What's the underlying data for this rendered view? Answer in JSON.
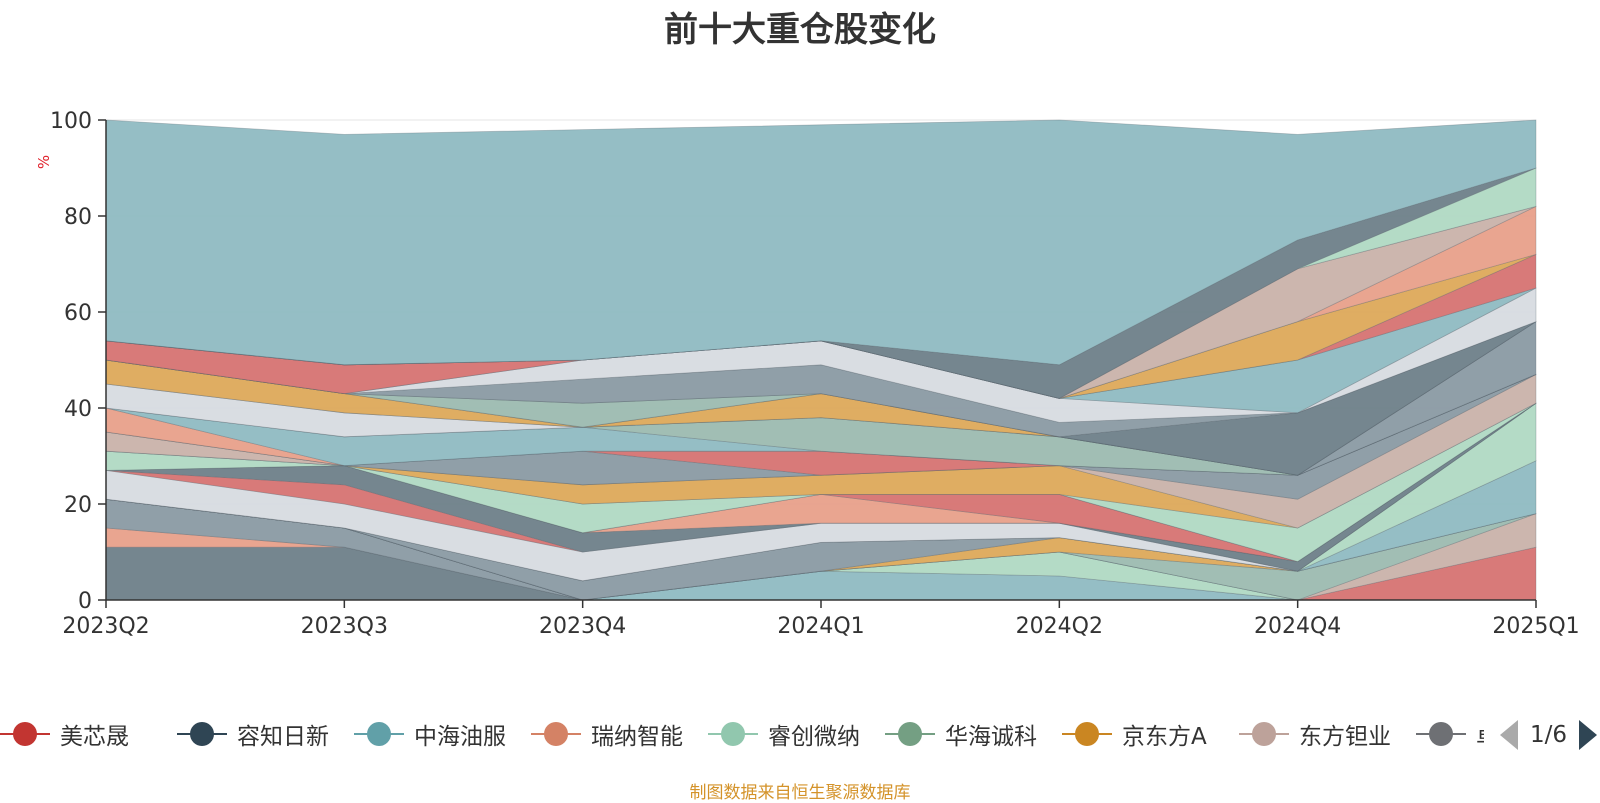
{
  "chart_data": {
    "type": "area",
    "stacked": true,
    "title": "前十大重仓股变化",
    "xlabel": "",
    "ylabel": "%",
    "ylim": [
      0,
      100
    ],
    "yticks": [
      "0",
      "20",
      "40",
      "60",
      "80",
      "100"
    ],
    "grid": true,
    "categories": [
      "2023Q2",
      "2023Q3",
      "2023Q4",
      "2024Q1",
      "2024Q2",
      "2024Q4",
      "2025Q1"
    ],
    "series": [
      {
        "name": "",
        "color": "#6e7f89",
        "values": [
          11,
          11,
          0,
          0,
          0,
          0,
          0
        ]
      },
      {
        "name": "",
        "color": "#e8a08a",
        "values": [
          4,
          0,
          0,
          0,
          0,
          0,
          0
        ]
      },
      {
        "name": "",
        "color": "#8a9aa3",
        "values": [
          6,
          4,
          0,
          0,
          0,
          0,
          0
        ]
      },
      {
        "name": "",
        "color": "#8fbac2",
        "values": [
          0,
          0,
          0,
          6,
          5,
          0,
          0
        ]
      },
      {
        "name": "",
        "color": "#b0d9c3",
        "values": [
          0,
          0,
          0,
          0,
          5,
          0,
          0
        ]
      },
      {
        "name": "",
        "color": "#d67372",
        "values": [
          0,
          0,
          0,
          0,
          0,
          0,
          11
        ]
      },
      {
        "name": "",
        "color": "#c9b2aa",
        "values": [
          0,
          0,
          0,
          0,
          0,
          0,
          7
        ]
      },
      {
        "name": "",
        "color": "#9cbbb0",
        "values": [
          0,
          0,
          0,
          0,
          0,
          6,
          0
        ]
      },
      {
        "name": "",
        "color": "#dda95a",
        "values": [
          0,
          0,
          0,
          0,
          3,
          0,
          0
        ]
      },
      {
        "name": "",
        "color": "#8a9aa3",
        "values": [
          0,
          0,
          4,
          6,
          0,
          0,
          0
        ]
      },
      {
        "name": "",
        "color": "#8fbac2",
        "values": [
          0,
          0,
          0,
          0,
          0,
          0,
          11
        ]
      },
      {
        "name": "",
        "color": "#b0d9c3",
        "values": [
          0,
          0,
          0,
          0,
          0,
          0,
          12
        ]
      },
      {
        "name": "",
        "color": "#d7dbe0",
        "values": [
          6,
          5,
          6,
          4,
          3,
          0,
          0
        ]
      },
      {
        "name": "",
        "color": "#d67372",
        "values": [
          0,
          4,
          0,
          0,
          0,
          0,
          0
        ]
      },
      {
        "name": "",
        "color": "#6e7f89",
        "values": [
          0,
          4,
          4,
          0,
          0,
          2,
          0
        ]
      },
      {
        "name": "",
        "color": "#e8a08a",
        "values": [
          0,
          0,
          0,
          6,
          0,
          0,
          0
        ]
      },
      {
        "name": "",
        "color": "#d67372",
        "values": [
          0,
          0,
          0,
          0,
          6,
          0,
          0
        ]
      },
      {
        "name": "",
        "color": "#b0d9c3",
        "values": [
          4,
          0,
          6,
          0,
          0,
          0,
          0
        ]
      },
      {
        "name": "",
        "color": "#b0d9c3",
        "values": [
          0,
          0,
          0,
          0,
          0,
          7,
          0
        ]
      },
      {
        "name": "",
        "color": "#dda95a",
        "values": [
          0,
          0,
          4,
          4,
          6,
          0,
          0
        ]
      },
      {
        "name": "",
        "color": "#c9b2aa",
        "values": [
          4,
          0,
          0,
          0,
          0,
          6,
          6
        ]
      },
      {
        "name": "",
        "color": "#8a9aa3",
        "values": [
          0,
          0,
          7,
          0,
          0,
          5,
          0
        ]
      },
      {
        "name": "",
        "color": "#d67372",
        "values": [
          0,
          0,
          0,
          5,
          0,
          0,
          0
        ]
      },
      {
        "name": "",
        "color": "#e8a08a",
        "values": [
          5,
          0,
          0,
          0,
          0,
          0,
          0
        ]
      },
      {
        "name": "",
        "color": "#8fbac2",
        "values": [
          0,
          6,
          5,
          0,
          0,
          0,
          0
        ]
      },
      {
        "name": "",
        "color": "#9cbbb0",
        "values": [
          0,
          0,
          0,
          7,
          6,
          0,
          0
        ]
      },
      {
        "name": "",
        "color": "#d7dbe0",
        "values": [
          5,
          5,
          0,
          0,
          0,
          0,
          0
        ]
      },
      {
        "name": "",
        "color": "#8a9aa3",
        "values": [
          0,
          0,
          0,
          0,
          0,
          0,
          11
        ]
      },
      {
        "name": "",
        "color": "#dda95a",
        "values": [
          5,
          4,
          0,
          5,
          0,
          0,
          0
        ]
      },
      {
        "name": "",
        "color": "#c9b2aa",
        "values": [
          0,
          0,
          0,
          0,
          0,
          0,
          0
        ]
      },
      {
        "name": "",
        "color": "#9cbbb0",
        "values": [
          0,
          0,
          5,
          0,
          0,
          0,
          0
        ]
      },
      {
        "name": "",
        "color": "#6e7f89",
        "values": [
          0,
          0,
          0,
          0,
          0,
          13,
          0
        ]
      },
      {
        "name": "",
        "color": "#8a9aa3",
        "values": [
          0,
          0,
          5,
          6,
          3,
          0,
          0
        ]
      },
      {
        "name": "",
        "color": "#d7dbe0",
        "values": [
          0,
          0,
          4,
          5,
          5,
          0,
          7
        ]
      },
      {
        "name": "",
        "color": "#8fbac2",
        "values": [
          0,
          0,
          0,
          0,
          0,
          11,
          0
        ]
      },
      {
        "name": "",
        "color": "#d67372",
        "values": [
          4,
          6,
          0,
          0,
          0,
          0,
          7
        ]
      },
      {
        "name": "",
        "color": "#dda95a",
        "values": [
          0,
          0,
          0,
          0,
          0,
          8,
          0
        ]
      },
      {
        "name": "",
        "color": "#e8a08a",
        "values": [
          0,
          0,
          0,
          0,
          0,
          0,
          10
        ]
      },
      {
        "name": "",
        "color": "#c9b2aa",
        "values": [
          0,
          0,
          0,
          0,
          0,
          11,
          0
        ]
      },
      {
        "name": "",
        "color": "#b0d9c3",
        "values": [
          0,
          0,
          0,
          0,
          0,
          0,
          8
        ]
      },
      {
        "name": "",
        "color": "#6e7f89",
        "values": [
          0,
          0,
          0,
          0,
          7,
          6,
          0
        ]
      },
      {
        "name": "",
        "color": "#8fbac2",
        "values": [
          46,
          48,
          48,
          45,
          51,
          22,
          10
        ]
      }
    ],
    "legend": {
      "placement": "bottom",
      "items": [
        {
          "name": "美芯晟",
          "color": "#c23531"
        },
        {
          "name": "容知日新",
          "color": "#2f4554"
        },
        {
          "name": "中海油服",
          "color": "#61a0a8"
        },
        {
          "name": "瑞纳智能",
          "color": "#d48265"
        },
        {
          "name": "睿创微纳",
          "color": "#91c7ae"
        },
        {
          "name": "华海诚科",
          "color": "#749f83"
        },
        {
          "name": "京东方A",
          "color": "#ca8622"
        },
        {
          "name": "东方钽业",
          "color": "#bda29a"
        },
        {
          "name": "卓然",
          "color": "#6e7074"
        }
      ],
      "page": "1/6"
    }
  },
  "footer": {
    "source": "制图数据来自恒生聚源数据库"
  }
}
